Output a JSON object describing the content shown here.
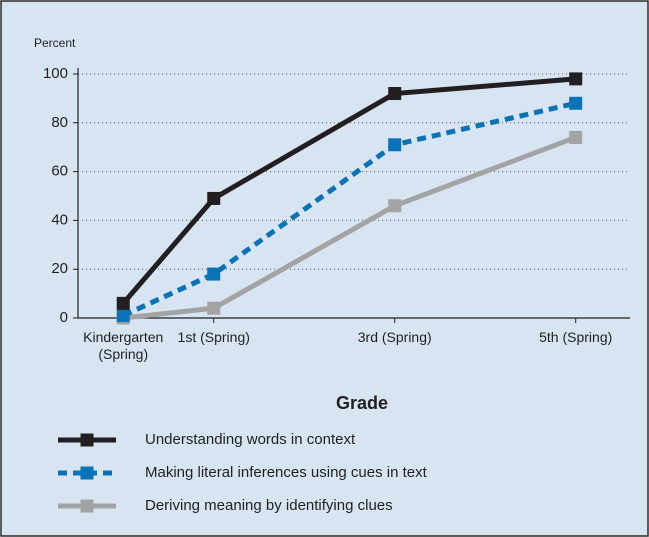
{
  "chart_data": {
    "type": "line",
    "y_axis_label": "Percent",
    "x_axis_label": "Grade",
    "x": [
      0,
      1,
      3,
      5
    ],
    "xlim": [
      -0.5,
      5.6
    ],
    "xticks": [
      {
        "value": 0,
        "label": "Kindergarten (Spring)"
      },
      {
        "value": 1,
        "label": "1st (Spring)"
      },
      {
        "value": 3,
        "label": "3rd (Spring)"
      },
      {
        "value": 5,
        "label": "5th (Spring)"
      }
    ],
    "ylim": [
      0,
      100
    ],
    "yticks": [
      0,
      20,
      40,
      60,
      80,
      100
    ],
    "grid": true,
    "series": [
      {
        "name": "Understanding words in context",
        "color": "#231f20",
        "dash": false,
        "values": [
          6,
          49,
          92,
          98
        ]
      },
      {
        "name": "Making literal inferences using cues in text",
        "color": "#0b72b5",
        "dash": true,
        "values": [
          1,
          18,
          71,
          88
        ]
      },
      {
        "name": "Deriving meaning by identifying clues",
        "color": "#a3a3a3",
        "dash": false,
        "values": [
          0,
          4,
          46,
          74
        ]
      }
    ]
  }
}
